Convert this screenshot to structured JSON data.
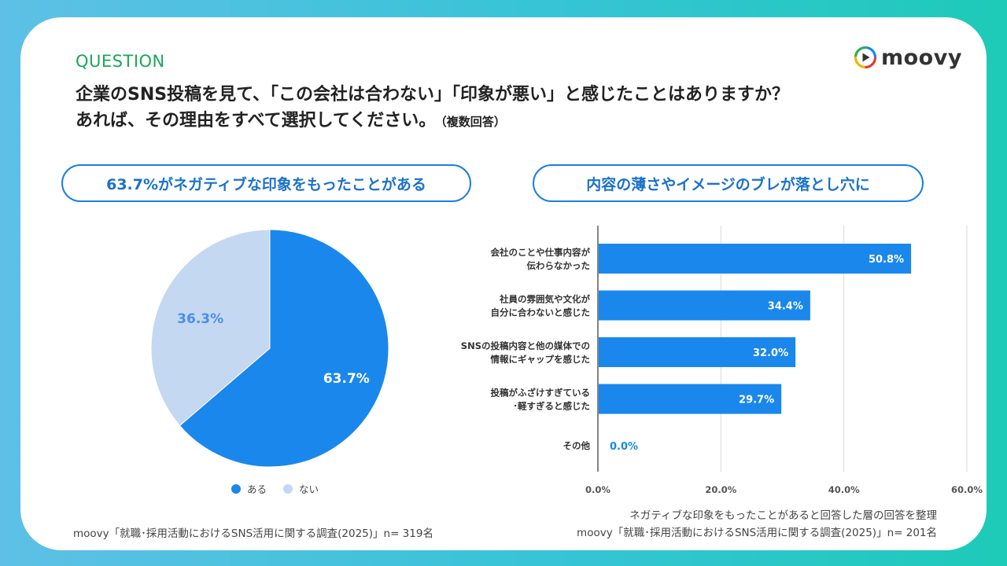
{
  "header": {
    "label": "QUESTION",
    "logo_text": "moovy",
    "title_line1": "企業のSNS投稿を見て、「この会社は合わない」「印象が悪い」と感じたことはありますか？",
    "title_line2": "あれば、その理由をすべて選択してください。",
    "title_note": "（複数回答）"
  },
  "left_panel": {
    "headline": "63.7%がネガティブな印象をもったことがある",
    "source": "moovy「就職･採用活動におけるSNS活用に関する調査(2025)」n= 319名"
  },
  "right_panel": {
    "headline": "内容の薄さやイメージのブレが落とし穴に",
    "note": "ネガティブな印象をもったことがあると回答した層の回答を整理",
    "source": "moovy「就職･採用活動におけるSNS活用に関する調査(2025)」n= 201名"
  },
  "colors": {
    "accent_blue": "#1a87ec",
    "light_blue": "#c5d8f1",
    "question_green": "#1aa657"
  },
  "chart_data": [
    {
      "type": "pie",
      "slices": [
        {
          "label": "ある",
          "value": 63.7,
          "display": "63.7%",
          "color": "#1a87ec"
        },
        {
          "label": "ない",
          "value": 36.3,
          "display": "36.3%",
          "color": "#c5d8f1"
        }
      ],
      "legend": {
        "placement": "bottom",
        "entries": [
          "ある",
          "ない"
        ]
      }
    },
    {
      "type": "bar",
      "orientation": "horizontal",
      "categories": [
        [
          "会社のことや仕事内容が",
          "伝わらなかった"
        ],
        [
          "社員の雰囲気や文化が",
          "自分に合わないと感じた"
        ],
        [
          "SNSの投稿内容と他の媒体での",
          "情報にギャップを感じた"
        ],
        [
          "投稿がふざけすぎている",
          "･軽すぎると感じた"
        ],
        [
          "その他"
        ]
      ],
      "values": [
        50.8,
        34.4,
        32.0,
        29.7,
        0.0
      ],
      "value_labels": [
        "50.8%",
        "34.4%",
        "32.0%",
        "29.7%",
        "0.0%"
      ],
      "xlim": [
        0,
        60
      ],
      "xticks": [
        "0.0%",
        "20.0%",
        "40.0%",
        "60.0%"
      ],
      "xtick_values": [
        0,
        20,
        40,
        60
      ],
      "grid": true,
      "bar_color": "#1a87ec"
    }
  ]
}
